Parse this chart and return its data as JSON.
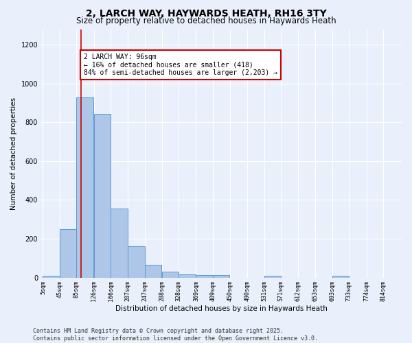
{
  "title": "2, LARCH WAY, HAYWARDS HEATH, RH16 3TY",
  "subtitle": "Size of property relative to detached houses in Haywards Heath",
  "xlabel": "Distribution of detached houses by size in Haywards Heath",
  "ylabel": "Number of detached properties",
  "bar_color": "#aec6e8",
  "bar_edge_color": "#5b9bd5",
  "bins": [
    5,
    45,
    85,
    126,
    166,
    207,
    247,
    288,
    328,
    369,
    409,
    450,
    490,
    531,
    571,
    612,
    653,
    693,
    733,
    774,
    814
  ],
  "values": [
    10,
    248,
    930,
    845,
    355,
    160,
    65,
    30,
    15,
    12,
    12,
    0,
    0,
    10,
    0,
    0,
    0,
    10,
    0,
    0
  ],
  "tick_labels": [
    "5sqm",
    "45sqm",
    "85sqm",
    "126sqm",
    "166sqm",
    "207sqm",
    "247sqm",
    "288sqm",
    "328sqm",
    "369sqm",
    "409sqm",
    "450sqm",
    "490sqm",
    "531sqm",
    "571sqm",
    "612sqm",
    "653sqm",
    "693sqm",
    "733sqm",
    "774sqm",
    "814sqm"
  ],
  "ylim": [
    0,
    1280
  ],
  "yticks": [
    0,
    200,
    400,
    600,
    800,
    1000,
    1200
  ],
  "property_size": 96,
  "red_line_color": "#cc0000",
  "annotation_text": "2 LARCH WAY: 96sqm\n← 16% of detached houses are smaller (418)\n84% of semi-detached houses are larger (2,203) →",
  "annotation_box_color": "#ffffff",
  "annotation_box_edge": "#cc0000",
  "footer_text": "Contains HM Land Registry data © Crown copyright and database right 2025.\nContains public sector information licensed under the Open Government Licence v3.0.",
  "bg_color": "#eaf0fb",
  "grid_color": "#ffffff",
  "title_fontsize": 10,
  "subtitle_fontsize": 8.5,
  "annot_fontsize": 7,
  "footer_fontsize": 6,
  "axis_label_fontsize": 7.5,
  "tick_fontsize": 6
}
